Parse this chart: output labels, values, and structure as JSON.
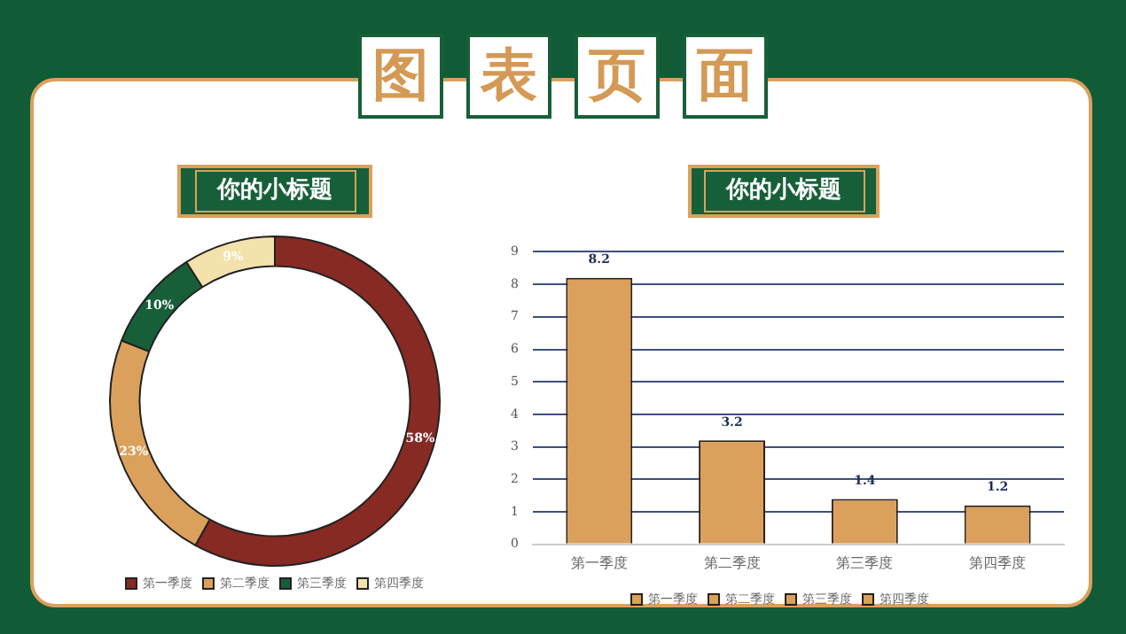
{
  "chart_data": [
    {
      "type": "other",
      "title": "图表页面"
    },
    {
      "type": "donut",
      "title": "你的小标题",
      "categories": [
        "第一季度",
        "第二季度",
        "第三季度",
        "第四季度"
      ],
      "values": [
        58,
        23,
        10,
        9
      ],
      "colors": [
        "#872a24",
        "#dba05c",
        "#175f38",
        "#f3e2ab"
      ],
      "value_labels": [
        "58%",
        "23%",
        "10%",
        "9%"
      ],
      "legend": "bottom"
    },
    {
      "type": "bar",
      "title": "你的小标题",
      "categories": [
        "第一季度",
        "第二季度",
        "第三季度",
        "第四季度"
      ],
      "series": [
        {
          "name": "第一季度",
          "color": "#dba05c",
          "values": [
            8.2,
            null,
            null,
            null
          ]
        },
        {
          "name": "第二季度",
          "color": "#dba05c",
          "values": [
            null,
            3.2,
            null,
            null
          ]
        },
        {
          "name": "第三季度",
          "color": "#dba05c",
          "values": [
            null,
            null,
            1.4,
            null
          ]
        },
        {
          "name": "第四季度",
          "color": "#dba05c",
          "values": [
            null,
            null,
            null,
            1.2
          ]
        }
      ],
      "ylim": [
        0,
        9
      ],
      "yticks": [
        0,
        1,
        2,
        3,
        4,
        5,
        6,
        7,
        8,
        9
      ],
      "grid": "y",
      "data_labels": true,
      "legend": "bottom"
    }
  ]
}
